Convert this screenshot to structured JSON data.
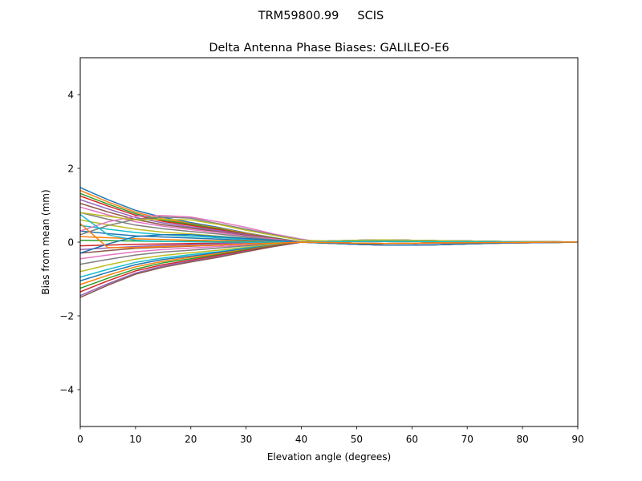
{
  "chart_data": {
    "type": "line",
    "suptitle": "TRM59800.99     SCIS",
    "title": "Delta Antenna Phase Biases: GALILEO-E6",
    "xlabel": "Elevation angle (degrees)",
    "ylabel": "Bias from mean (mm)",
    "xlim": [
      0,
      90
    ],
    "ylim": [
      -5,
      5
    ],
    "xticks": [
      0,
      10,
      20,
      30,
      40,
      50,
      60,
      70,
      80,
      90
    ],
    "xtick_labels": [
      "0",
      "10",
      "20",
      "30",
      "40",
      "50",
      "60",
      "70",
      "80",
      "90"
    ],
    "yticks": [
      -4,
      -2,
      0,
      2,
      4
    ],
    "ytick_labels": [
      "−4",
      "−2",
      "0",
      "2",
      "4"
    ],
    "grid": false,
    "colors": [
      "#1f77b4",
      "#ff7f0e",
      "#2ca02c",
      "#d62728",
      "#9467bd",
      "#8c564b",
      "#e377c2",
      "#7f7f7f",
      "#bcbd22",
      "#17becf"
    ],
    "x": [
      0,
      5,
      10,
      15,
      20,
      25,
      30,
      35,
      40,
      45,
      50,
      55,
      60,
      65,
      70,
      75,
      80,
      85,
      90
    ],
    "series": [
      {
        "values": [
          1.48,
          1.15,
          0.86,
          0.67,
          0.53,
          0.4,
          0.25,
          0.12,
          0.0,
          0.03,
          0.05,
          0.06,
          0.05,
          0.04,
          0.03,
          0.02,
          0.01,
          0.01,
          0
        ]
      },
      {
        "values": [
          1.4,
          1.09,
          0.81,
          0.63,
          0.5,
          0.38,
          0.24,
          0.11,
          0.0,
          -0.03,
          -0.06,
          -0.08,
          -0.08,
          -0.07,
          -0.05,
          -0.03,
          -0.02,
          -0.01,
          0
        ]
      },
      {
        "values": [
          1.32,
          1.03,
          0.77,
          0.59,
          0.48,
          0.36,
          0.22,
          0.11,
          0.0,
          0.01,
          0.02,
          0.02,
          0.02,
          0.01,
          0.01,
          0.01,
          0,
          0,
          0
        ]
      },
      {
        "values": [
          1.25,
          0.98,
          0.73,
          0.56,
          0.45,
          0.34,
          0.21,
          0.1,
          0.0,
          -0.01,
          -0.03,
          -0.04,
          -0.03,
          -0.02,
          -0.02,
          -0.01,
          -0.01,
          0,
          0
        ]
      },
      {
        "values": [
          1.15,
          0.9,
          0.67,
          0.52,
          0.41,
          0.31,
          0.2,
          0.09,
          0.0,
          0.03,
          0.05,
          0.06,
          0.05,
          0.04,
          0.03,
          0.02,
          0.01,
          0.01,
          0
        ]
      },
      {
        "values": [
          1.05,
          0.82,
          0.61,
          0.47,
          0.38,
          0.28,
          0.18,
          0.08,
          0.0,
          -0.03,
          -0.06,
          -0.08,
          -0.08,
          -0.07,
          -0.05,
          -0.03,
          -0.02,
          -0.01,
          0
        ]
      },
      {
        "values": [
          0.95,
          0.74,
          0.55,
          0.43,
          0.34,
          0.26,
          0.16,
          0.08,
          0.0,
          0.01,
          0.02,
          0.02,
          0.02,
          0.01,
          0.01,
          0.01,
          0,
          0,
          0
        ]
      },
      {
        "values": [
          0.8,
          0.62,
          0.46,
          0.36,
          0.29,
          0.22,
          0.14,
          0.06,
          0.0,
          -0.01,
          -0.03,
          -0.04,
          -0.03,
          -0.02,
          -0.02,
          -0.01,
          -0.01,
          0,
          0
        ]
      },
      {
        "values": [
          0.6,
          0.47,
          0.35,
          0.27,
          0.22,
          0.16,
          0.1,
          0.05,
          0.0,
          0.03,
          0.05,
          0.06,
          0.05,
          0.04,
          0.03,
          0.02,
          0.01,
          0.01,
          0
        ]
      },
      {
        "values": [
          0.45,
          0.35,
          0.26,
          0.2,
          0.16,
          0.12,
          0.08,
          0.04,
          0.0,
          -0.03,
          -0.06,
          -0.08,
          -0.08,
          -0.07,
          -0.05,
          -0.03,
          -0.02,
          -0.01,
          0
        ]
      },
      {
        "values": [
          0.3,
          0.23,
          0.17,
          0.14,
          0.11,
          0.08,
          0.05,
          0.02,
          0.0,
          0.01,
          0.02,
          0.02,
          0.02,
          0.01,
          0.01,
          0.01,
          0,
          0,
          0
        ]
      },
      {
        "values": [
          0.15,
          0.12,
          0.09,
          0.07,
          0.05,
          0.04,
          0.03,
          0.01,
          0.0,
          -0.01,
          -0.03,
          -0.04,
          -0.03,
          -0.02,
          -0.02,
          -0.01,
          -0.01,
          0,
          0
        ]
      },
      {
        "values": [
          0.05,
          0.04,
          0.03,
          0.02,
          0.02,
          0.01,
          0.01,
          0.0,
          0.0,
          0.03,
          0.05,
          0.06,
          0.05,
          0.04,
          0.03,
          0.02,
          0.01,
          0.01,
          0
        ]
      },
      {
        "values": [
          -0.1,
          -0.08,
          -0.06,
          -0.05,
          -0.04,
          -0.03,
          -0.02,
          -0.01,
          0,
          -0.03,
          -0.06,
          -0.08,
          -0.08,
          -0.07,
          -0.05,
          -0.03,
          -0.02,
          -0.01,
          0
        ]
      },
      {
        "values": [
          -0.2,
          -0.16,
          -0.12,
          -0.09,
          -0.07,
          -0.05,
          -0.03,
          -0.02,
          0,
          0.01,
          0.02,
          0.02,
          0.02,
          0.01,
          0.01,
          0.01,
          0,
          0,
          0
        ]
      },
      {
        "values": [
          -0.3,
          -0.23,
          -0.17,
          -0.14,
          -0.11,
          -0.08,
          -0.05,
          -0.02,
          0,
          -0.01,
          -0.03,
          -0.04,
          -0.03,
          -0.02,
          -0.02,
          -0.01,
          -0.01,
          0,
          0
        ]
      },
      {
        "values": [
          -0.45,
          -0.35,
          -0.26,
          -0.2,
          -0.16,
          -0.12,
          -0.08,
          -0.04,
          0,
          0.03,
          0.05,
          0.06,
          0.05,
          0.04,
          0.03,
          0.02,
          0.01,
          0.01,
          0
        ]
      },
      {
        "values": [
          -0.6,
          -0.47,
          -0.35,
          -0.27,
          -0.22,
          -0.16,
          -0.1,
          -0.05,
          0,
          -0.03,
          -0.06,
          -0.08,
          -0.08,
          -0.07,
          -0.05,
          -0.03,
          -0.02,
          -0.01,
          0
        ]
      },
      {
        "values": [
          -0.8,
          -0.62,
          -0.46,
          -0.36,
          -0.29,
          -0.22,
          -0.14,
          -0.06,
          0,
          0.01,
          0.02,
          0.02,
          0.02,
          0.01,
          0.01,
          0.01,
          0,
          0,
          0
        ]
      },
      {
        "values": [
          -0.95,
          -0.74,
          -0.55,
          -0.43,
          -0.34,
          -0.26,
          -0.16,
          -0.08,
          0,
          -0.01,
          -0.03,
          -0.04,
          -0.03,
          -0.02,
          -0.02,
          -0.01,
          -0.01,
          0,
          0
        ]
      },
      {
        "values": [
          -1.05,
          -0.82,
          -0.61,
          -0.47,
          -0.38,
          -0.28,
          -0.18,
          -0.08,
          0,
          0.03,
          0.05,
          0.06,
          0.05,
          0.04,
          0.03,
          0.02,
          0.01,
          0.01,
          0
        ]
      },
      {
        "values": [
          -1.15,
          -0.9,
          -0.67,
          -0.52,
          -0.41,
          -0.31,
          -0.2,
          -0.09,
          0,
          -0.03,
          -0.06,
          -0.08,
          -0.08,
          -0.07,
          -0.05,
          -0.03,
          -0.02,
          -0.01,
          0
        ]
      },
      {
        "values": [
          -1.25,
          -0.98,
          -0.73,
          -0.56,
          -0.45,
          -0.34,
          -0.21,
          -0.1,
          0,
          0.01,
          0.02,
          0.02,
          0.02,
          0.01,
          0.01,
          0.01,
          0,
          0,
          0
        ]
      },
      {
        "values": [
          -1.35,
          -1.05,
          -0.78,
          -0.61,
          -0.49,
          -0.36,
          -0.23,
          -0.11,
          0,
          -0.01,
          -0.03,
          -0.04,
          -0.03,
          -0.02,
          -0.02,
          -0.01,
          -0.01,
          0,
          0
        ]
      },
      {
        "values": [
          -1.45,
          -1.13,
          -0.84,
          -0.65,
          -0.52,
          -0.39,
          -0.25,
          -0.12,
          0,
          0.03,
          0.05,
          0.06,
          0.05,
          0.04,
          0.03,
          0.02,
          0.01,
          0.01,
          0
        ]
      },
      {
        "values": [
          -1.5,
          -1.17,
          -0.87,
          -0.68,
          -0.54,
          -0.41,
          -0.26,
          -0.12,
          0,
          -0.03,
          -0.06,
          -0.08,
          -0.08,
          -0.07,
          -0.05,
          -0.03,
          -0.02,
          -0.01,
          0
        ]
      },
      {
        "values": [
          0.3,
          0.55,
          0.7,
          0.72,
          0.68,
          0.55,
          0.4,
          0.22,
          0.08,
          -0.03,
          -0.06,
          -0.08,
          -0.08,
          -0.07,
          -0.05,
          -0.03,
          -0.02,
          -0.01,
          0
        ]
      },
      {
        "values": [
          0.2,
          0.45,
          0.62,
          0.68,
          0.65,
          0.5,
          0.35,
          0.2,
          0.06,
          -0.01,
          -0.03,
          -0.04,
          -0.03,
          -0.02,
          -0.02,
          -0.01,
          -0.01,
          0,
          0
        ]
      },
      {
        "values": [
          0.8,
          0.7,
          0.6,
          0.62,
          0.6,
          0.48,
          0.32,
          0.18,
          0.05,
          0.03,
          0.05,
          0.06,
          0.05,
          0.04,
          0.03,
          0.02,
          0.01,
          0.01,
          0
        ]
      },
      {
        "values": [
          0.75,
          0.2,
          0.05,
          0.02,
          0.01,
          0.0,
          0.0,
          0.0,
          0.0,
          0.01,
          0.02,
          0.02,
          0.02,
          0.01,
          0.01,
          0.01,
          0,
          0,
          0
        ]
      },
      {
        "values": [
          -0.3,
          -0.05,
          0.15,
          0.2,
          0.2,
          0.15,
          0.1,
          0.05,
          0.0,
          -0.03,
          -0.06,
          -0.08,
          -0.08,
          -0.07,
          -0.05,
          -0.03,
          -0.02,
          -0.01,
          0
        ]
      },
      {
        "values": [
          0.5,
          -0.15,
          -0.15,
          -0.12,
          -0.1,
          -0.08,
          -0.05,
          -0.03,
          0,
          -0.01,
          -0.03,
          -0.04,
          -0.03,
          -0.02,
          -0.02,
          -0.01,
          -0.01,
          0,
          0
        ]
      }
    ]
  }
}
